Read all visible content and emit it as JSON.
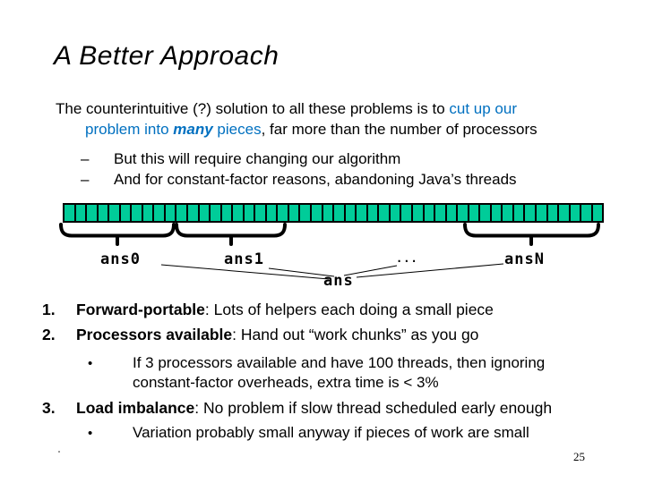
{
  "slide": {
    "title": "A Better Approach",
    "page_number": "25"
  },
  "colors": {
    "accent_blue": "#0070C0",
    "bar_green": "#00CC99",
    "bar_border": "#000000"
  },
  "intro": {
    "line1_black": "The counterintuitive (?) solution to all these problems is to ",
    "line1_blue": "cut up our",
    "line2_blue_pre": "problem into ",
    "line2_blue_em": "many",
    "line2_blue_post": " pieces",
    "line2_black": ", far more than the number of processors"
  },
  "dash_items": [
    {
      "bullet": "–",
      "text": "But this will require changing our algorithm"
    },
    {
      "bullet": "–",
      "text": "And for constant-factor reasons, abandoning Java’s threads"
    }
  ],
  "diagram": {
    "bar": {
      "segment_count": 48
    },
    "labels": {
      "ans0": "ans0",
      "ans1": "ans1",
      "dots": "...",
      "ansN": "ansN",
      "ans": "ans"
    }
  },
  "numbered_items": [
    {
      "num": "1.",
      "lead": "Forward-portable",
      "rest": ": Lots of helpers each doing a small piece"
    },
    {
      "num": "2.",
      "lead": "Processors available",
      "rest": ": Hand out “work chunks” as you go"
    },
    {
      "num": "3.",
      "lead": "Load imbalance",
      "rest": ": No problem if slow thread scheduled early enough"
    }
  ],
  "sub_bullets": {
    "item2": {
      "bullet": "•",
      "line1": "If 3 processors available and have 100 threads, then ignoring",
      "line2": "constant-factor overheads, extra time is < 3%"
    },
    "item3": {
      "bullet": "•",
      "line1": "Variation probably small anyway if pieces of work are small"
    }
  }
}
